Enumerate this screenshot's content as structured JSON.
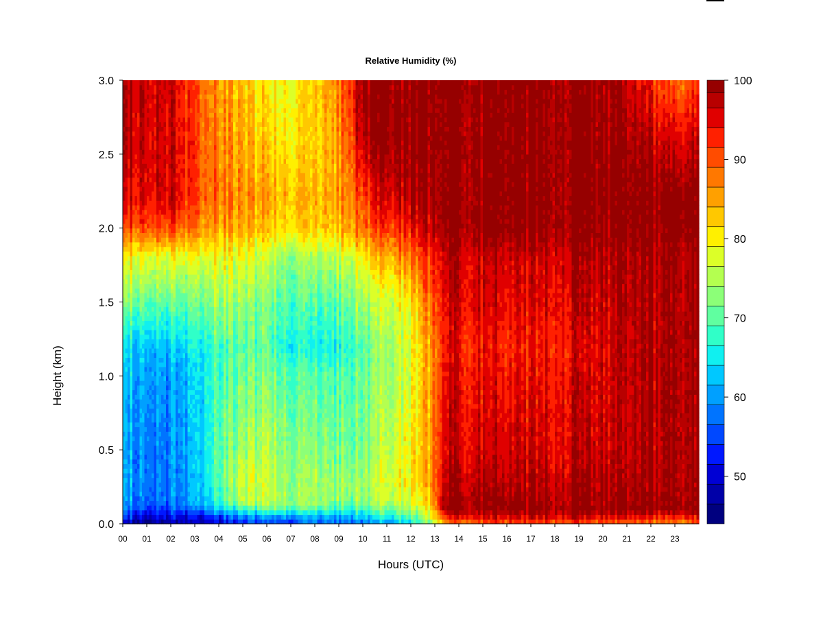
{
  "chart_data": {
    "type": "heatmap",
    "title": "Relative Humidity (%)",
    "xlabel": "Hours (UTC)",
    "ylabel": "Height (km)",
    "x_ticks": [
      "00",
      "01",
      "02",
      "03",
      "04",
      "05",
      "06",
      "07",
      "08",
      "09",
      "10",
      "11",
      "12",
      "13",
      "14",
      "15",
      "16",
      "17",
      "18",
      "19",
      "20",
      "21",
      "22",
      "23"
    ],
    "y_ticks": [
      "0.0",
      "0.5",
      "1.0",
      "1.5",
      "2.0",
      "2.5",
      "3.0"
    ],
    "xlim": [
      0,
      24
    ],
    "ylim": [
      0,
      3.0
    ],
    "colorbar": {
      "min": 44,
      "max": 100,
      "ticks": [
        "50",
        "60",
        "70",
        "80",
        "90",
        "100"
      ],
      "tick_values": [
        50,
        60,
        70,
        80,
        90,
        100
      ],
      "levels": [
        44,
        46.5,
        49,
        51.5,
        54,
        56.5,
        59,
        61.5,
        64,
        66.5,
        69,
        71.5,
        74,
        76.5,
        79,
        81.5,
        84,
        86.5,
        89,
        91.5,
        94,
        96.5,
        98.5,
        100
      ],
      "colors": [
        "#00007F",
        "#0000A8",
        "#0000D4",
        "#0018FF",
        "#0048FF",
        "#0074FF",
        "#00A0FF",
        "#00C8FF",
        "#10F0F0",
        "#30FFC8",
        "#60FFA0",
        "#8CFF78",
        "#B4FF50",
        "#DCFF28",
        "#FFF000",
        "#FFC800",
        "#FFA000",
        "#FF7800",
        "#FF4C00",
        "#FF2000",
        "#E00000",
        "#B80000",
        "#960000",
        "#800000"
      ]
    },
    "height_km": [
      0.0,
      0.05,
      0.1,
      0.15,
      0.3,
      0.5,
      1.0,
      1.2,
      1.5,
      1.8,
      2.0,
      2.2,
      2.6,
      3.0
    ],
    "time_hours": [
      0,
      1,
      2,
      3,
      4,
      5,
      6,
      7,
      8,
      9,
      10,
      11,
      12,
      12.7,
      13.4,
      14,
      15,
      16,
      17,
      18,
      19,
      20,
      21,
      22,
      23,
      24
    ],
    "rh_percent": [
      [
        48,
        47,
        47,
        48,
        50,
        52,
        54,
        55,
        56,
        57,
        58,
        60,
        64,
        70,
        84,
        88,
        89,
        90,
        90,
        91,
        90,
        90,
        89,
        88,
        86,
        88
      ],
      [
        54,
        52,
        51,
        52,
        55,
        58,
        60,
        60,
        61,
        62,
        63,
        66,
        70,
        75,
        92,
        95,
        96,
        96,
        96,
        97,
        96,
        96,
        95,
        94,
        93,
        94
      ],
      [
        58,
        56,
        55,
        58,
        63,
        67,
        70,
        70,
        69,
        68,
        68,
        72,
        74,
        78,
        99,
        100,
        100,
        100,
        100,
        100,
        100,
        100,
        100,
        100,
        100,
        100
      ],
      [
        60,
        59,
        58,
        62,
        68,
        75,
        76,
        74,
        74,
        73,
        73,
        76,
        78,
        80,
        99,
        100,
        100,
        100,
        99,
        99,
        99,
        99,
        99,
        99,
        99,
        99
      ],
      [
        61,
        60,
        58,
        62,
        70,
        77,
        76,
        74,
        74,
        74,
        74,
        78,
        80,
        84,
        97,
        98,
        98,
        97,
        97,
        98,
        98,
        98,
        98,
        98,
        98,
        98
      ],
      [
        61,
        60,
        58,
        63,
        70,
        74,
        75,
        73,
        72,
        72,
        72,
        76,
        80,
        84,
        96,
        96,
        96,
        96,
        96,
        96,
        97,
        97,
        97,
        98,
        98,
        98
      ],
      [
        62,
        62,
        60,
        64,
        69,
        71,
        72,
        70,
        69,
        70,
        71,
        74,
        78,
        84,
        95,
        95,
        95,
        94,
        94,
        95,
        96,
        96,
        97,
        98,
        98,
        98
      ],
      [
        64,
        64,
        62,
        66,
        69,
        70,
        70,
        67,
        65,
        67,
        70,
        74,
        78,
        84,
        94,
        94,
        94,
        93,
        93,
        94,
        95,
        96,
        97,
        98,
        98,
        98
      ],
      [
        72,
        72,
        70,
        72,
        74,
        73,
        72,
        70,
        69,
        71,
        74,
        77,
        80,
        88,
        95,
        96,
        96,
        95,
        95,
        96,
        97,
        97,
        98,
        98,
        98,
        98
      ],
      [
        80,
        80,
        78,
        79,
        79,
        78,
        76,
        74,
        74,
        76,
        80,
        84,
        88,
        92,
        97,
        97,
        97,
        96,
        96,
        97,
        98,
        98,
        98,
        98,
        98,
        98
      ],
      [
        90,
        92,
        91,
        88,
        85,
        84,
        83,
        82,
        82,
        84,
        88,
        92,
        94,
        96,
        100,
        100,
        100,
        100,
        100,
        100,
        100,
        100,
        100,
        100,
        100,
        100
      ],
      [
        95,
        97,
        96,
        92,
        88,
        86,
        85,
        84,
        83,
        86,
        91,
        96,
        98,
        99,
        100,
        100,
        100,
        100,
        100,
        100,
        100,
        100,
        100,
        100,
        100,
        100
      ],
      [
        98,
        98,
        96,
        92,
        87,
        84,
        82,
        81,
        81,
        86,
        98,
        100,
        100,
        100,
        100,
        100,
        100,
        100,
        100,
        100,
        100,
        100,
        99,
        97,
        95,
        96
      ],
      [
        98,
        98,
        96,
        91,
        86,
        83,
        80,
        80,
        82,
        88,
        100,
        100,
        100,
        100,
        100,
        100,
        100,
        100,
        100,
        100,
        100,
        99,
        97,
        93,
        88,
        90
      ]
    ]
  }
}
